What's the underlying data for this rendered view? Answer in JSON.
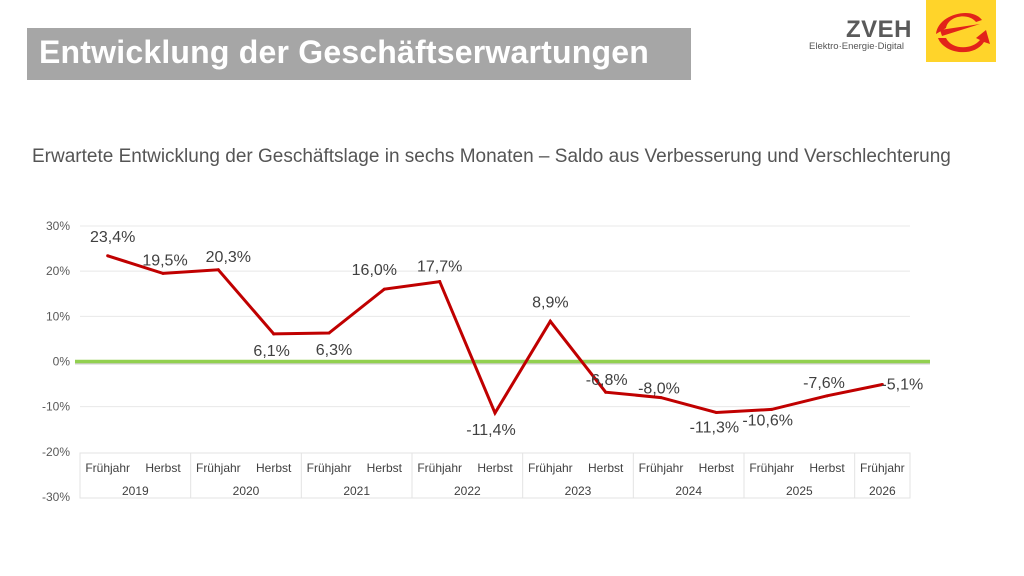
{
  "header": {
    "title": "Entwicklung der Geschäftserwartungen",
    "logo_name": "ZVEH",
    "logo_tagline": "Elektro·Energie·Digital",
    "logo_icon": "zveh-e-arrow-icon",
    "brand_yellow": "#ffd42a",
    "brand_red": "#e2231a"
  },
  "chart_data": {
    "type": "line",
    "title": "Erwartete Entwicklung der Geschäftslage in sechs Monaten – Saldo aus Verbesserung und Verschlechterung",
    "xlabel": "",
    "ylabel": "",
    "ylim": [
      -30,
      30
    ],
    "yticks": [
      30,
      20,
      10,
      0,
      -10,
      -20,
      -30
    ],
    "ytick_labels": [
      "30%",
      "20%",
      "10%",
      "0%",
      "-10%",
      "-20%",
      "-30%"
    ],
    "grid": true,
    "reference_line": {
      "value": 0,
      "color": "#92d050"
    },
    "categories": [
      {
        "season": "Frühjahr",
        "year": "2019"
      },
      {
        "season": "Herbst",
        "year": "2019"
      },
      {
        "season": "Frühjahr",
        "year": "2020"
      },
      {
        "season": "Herbst",
        "year": "2020"
      },
      {
        "season": "Frühjahr",
        "year": "2021"
      },
      {
        "season": "Herbst",
        "year": "2021"
      },
      {
        "season": "Frühjahr",
        "year": "2022"
      },
      {
        "season": "Herbst",
        "year": "2022"
      },
      {
        "season": "Frühjahr",
        "year": "2023"
      },
      {
        "season": "Herbst",
        "year": "2023"
      },
      {
        "season": "Frühjahr",
        "year": "2024"
      },
      {
        "season": "Herbst",
        "year": "2024"
      },
      {
        "season": "Frühjahr",
        "year": "2025"
      },
      {
        "season": "Herbst",
        "year": "2025"
      },
      {
        "season": "Frühjahr",
        "year": "2026"
      }
    ],
    "years": [
      "2019",
      "2020",
      "2021",
      "2022",
      "2023",
      "2024",
      "2025",
      "2026"
    ],
    "series": [
      {
        "name": "Saldo",
        "color": "#c00000",
        "values": [
          23.4,
          19.5,
          20.3,
          6.1,
          6.3,
          16.0,
          17.7,
          -11.4,
          8.9,
          -6.8,
          -8.0,
          -11.3,
          -10.6,
          -7.6,
          -5.1
        ],
        "labels": [
          "23,4%",
          "19,5%",
          "20,3%",
          "6,1%",
          "6,3%",
          "16,0%",
          "17,7%",
          "-11,4%",
          "8,9%",
          "-6,8%",
          "-8,0%",
          "-11,3%",
          "-10,6%",
          "-7,6%",
          "-5,1%"
        ]
      }
    ]
  }
}
